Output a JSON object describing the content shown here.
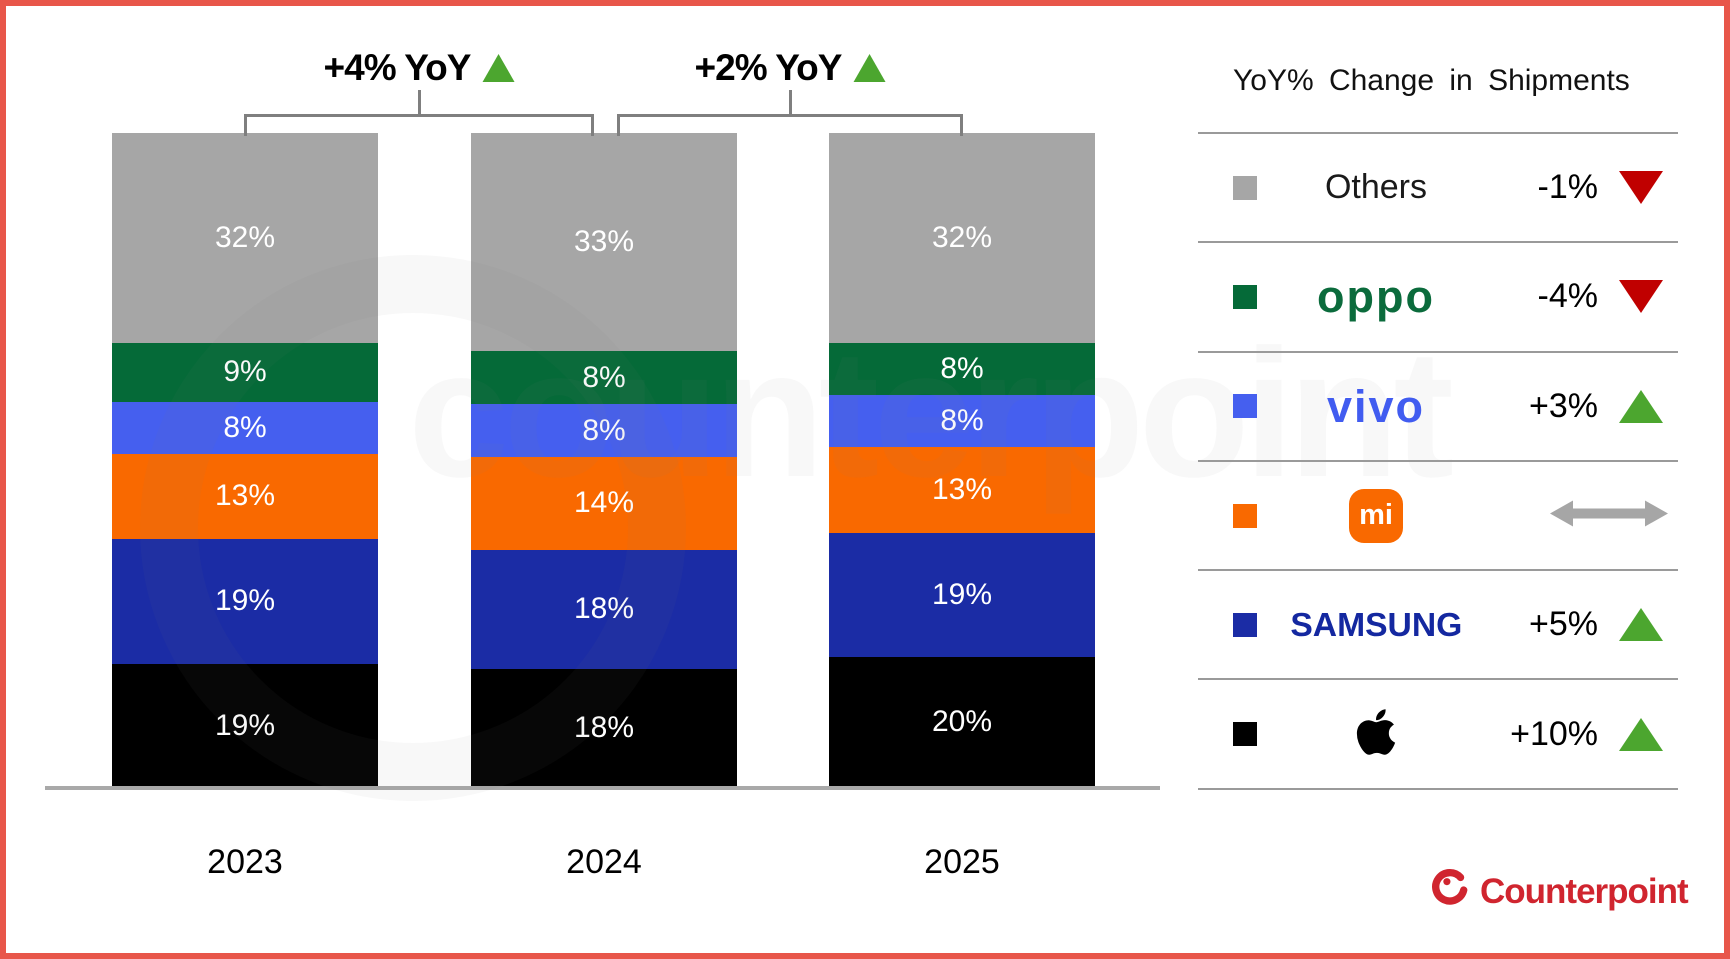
{
  "chart_data": {
    "type": "bar",
    "stacked": true,
    "title": "",
    "categories": [
      "2023",
      "2024",
      "2025"
    ],
    "series": [
      {
        "name": "Apple",
        "color": "#000000",
        "values": [
          19,
          18,
          20
        ]
      },
      {
        "name": "Samsung",
        "color": "#1B2CA5",
        "values": [
          19,
          18,
          19
        ]
      },
      {
        "name": "Xiaomi",
        "color": "#F96900",
        "values": [
          13,
          14,
          13
        ]
      },
      {
        "name": "vivo",
        "color": "#455FEF",
        "values": [
          8,
          8,
          8
        ]
      },
      {
        "name": "OPPO",
        "color": "#056A38",
        "values": [
          9,
          8,
          8
        ]
      },
      {
        "name": "Others",
        "color": "#A6A6A6",
        "values": [
          32,
          33,
          32
        ]
      }
    ],
    "value_suffix": "%",
    "annotations": [
      {
        "text": "+4% YoY",
        "direction": "up",
        "spans": [
          "2023",
          "2024"
        ]
      },
      {
        "text": "+2% YoY",
        "direction": "up",
        "spans": [
          "2024",
          "2025"
        ]
      }
    ],
    "legend_position": "right",
    "grid": false
  },
  "legend": {
    "title": "YoY% Change in Shipments",
    "rows": [
      {
        "brand": "others",
        "label": "Others",
        "change": "-1%",
        "direction": "down",
        "color": "#A6A6A6"
      },
      {
        "brand": "oppo",
        "label": "oppo",
        "change": "-4%",
        "direction": "down",
        "color": "#056A38"
      },
      {
        "brand": "vivo",
        "label": "vivo",
        "change": "+3%",
        "direction": "up",
        "color": "#455FEF"
      },
      {
        "brand": "xiaomi",
        "label": "mi",
        "change": "",
        "direction": "flat",
        "color": "#F96900"
      },
      {
        "brand": "samsung",
        "label": "SAMSUNG",
        "change": "+5%",
        "direction": "up",
        "color": "#1B2CA5"
      },
      {
        "brand": "apple",
        "label": "apple",
        "change": "+10%",
        "direction": "up",
        "color": "#000000"
      }
    ]
  },
  "branding": {
    "watermark": "counterpoint",
    "logo_text": "Counterpoint"
  },
  "colors": {
    "up_arrow": "#4CA62F",
    "down_arrow": "#C00000",
    "flat_arrow": "#A6A6A6",
    "frame": "#E8564A",
    "axis": "#A9A9A9",
    "bracket": "#7F7F7F",
    "counterpoint_red": "#D0252F"
  }
}
